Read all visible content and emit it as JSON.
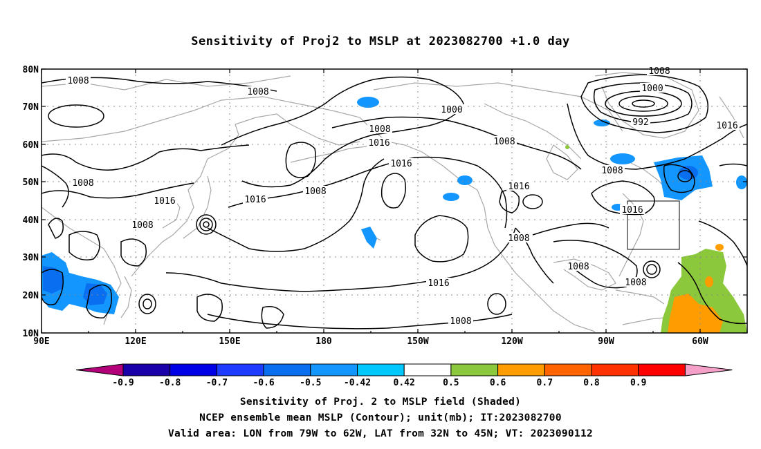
{
  "title": "Sensitivity of Proj2 to MSLP at 2023082700 +1.0 day",
  "lat_labels": [
    "80N",
    "70N",
    "60N",
    "50N",
    "40N",
    "30N",
    "20N",
    "10N"
  ],
  "lon_labels": [
    "90E",
    "120E",
    "150E",
    "180",
    "150W",
    "120W",
    "90W",
    "60W"
  ],
  "colorbar": {
    "labels": [
      "-0.9",
      "-0.8",
      "-0.7",
      "-0.6",
      "-0.5",
      "-0.42",
      "0.42",
      "0.5",
      "0.6",
      "0.7",
      "0.8",
      "0.9"
    ],
    "colors": [
      "#b3007a",
      "#1a00a8",
      "#0000e6",
      "#1e3cff",
      "#0a6ef0",
      "#1496ff",
      "#00c8ff",
      "#ffffff",
      "#8cc83c",
      "#ff9c00",
      "#ff6400",
      "#ff3200",
      "#ff0000",
      "#f5a0c8"
    ]
  },
  "contour_labels": [
    {
      "text": "1008"
    },
    {
      "text": "1008"
    },
    {
      "text": "1008"
    },
    {
      "text": "1000"
    },
    {
      "text": "1008"
    },
    {
      "text": "1016"
    },
    {
      "text": "1016"
    },
    {
      "text": "1008"
    },
    {
      "text": "1008"
    },
    {
      "text": "1016"
    },
    {
      "text": "1016"
    },
    {
      "text": "1016"
    },
    {
      "text": "1008"
    },
    {
      "text": "1008"
    },
    {
      "text": "1000"
    },
    {
      "text": "992"
    },
    {
      "text": "1016"
    },
    {
      "text": "1008"
    },
    {
      "text": "1016"
    },
    {
      "text": "1008"
    },
    {
      "text": "1008"
    },
    {
      "text": "1008"
    },
    {
      "text": "1016"
    },
    {
      "text": "1008"
    }
  ],
  "footer": {
    "line1": "Sensitivity of Proj. 2 to MSLP field (Shaded)",
    "line2": "NCEP ensemble mean MSLP (Contour); unit(mb); IT:2023082700",
    "line3": "Valid area: LON from 79W to 62W, LAT from 32N to 45N; VT: 2023090112"
  }
}
